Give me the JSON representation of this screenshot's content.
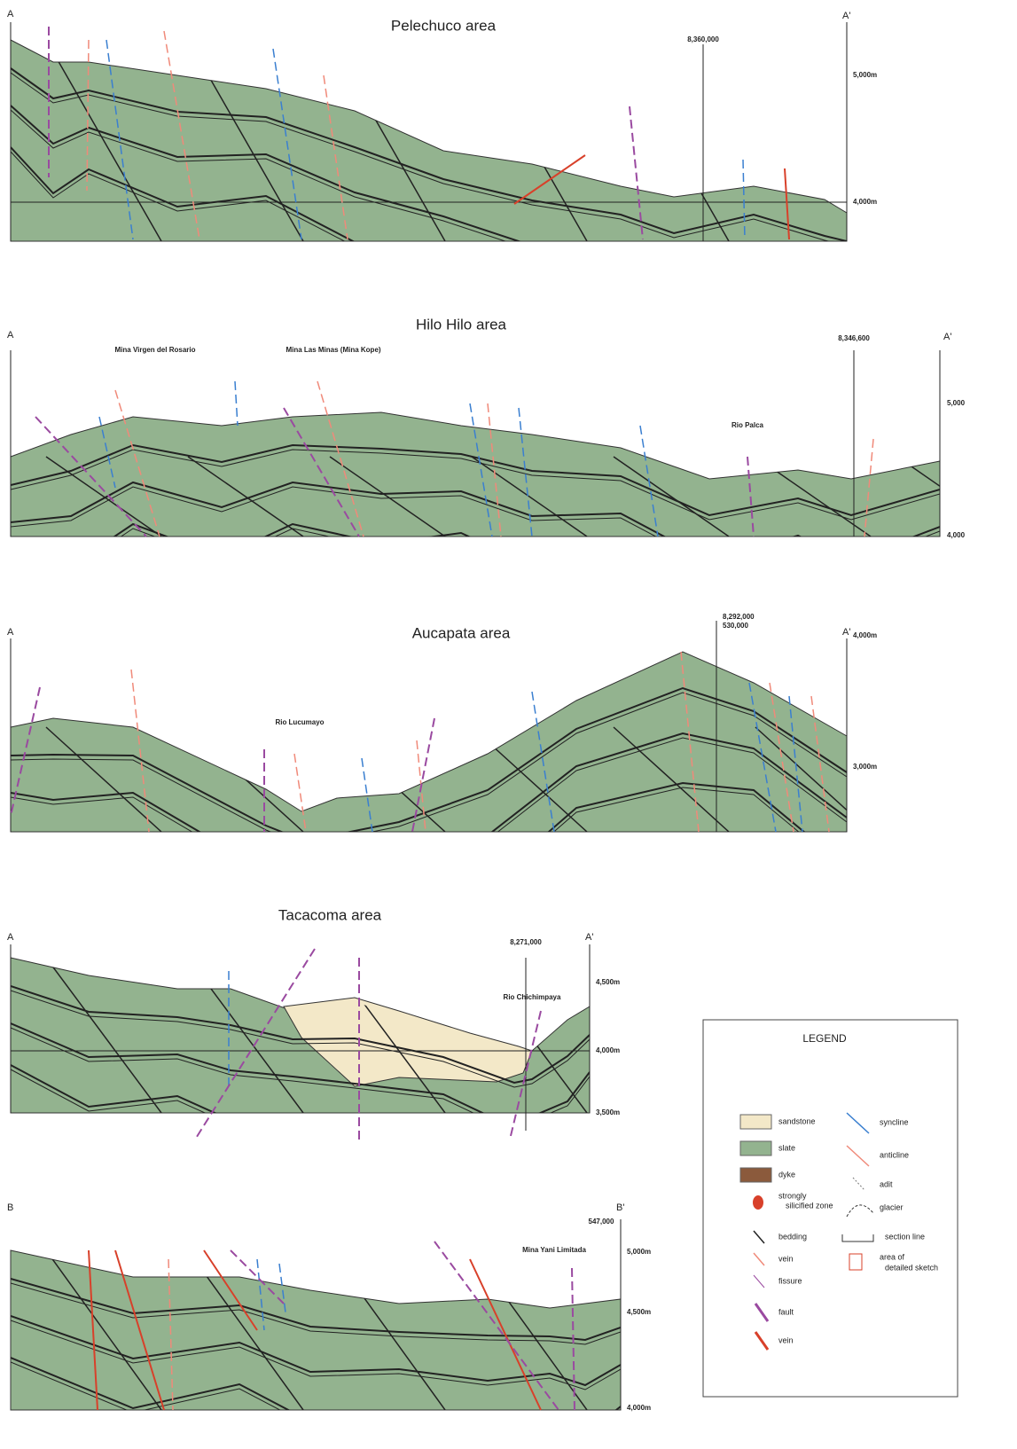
{
  "sections": [
    {
      "title": "Pelechuco area",
      "start": "A",
      "end": "A'",
      "labels": [
        "8,360,000",
        "5,000m",
        "4,000m"
      ]
    },
    {
      "title": "Hilo Hilo area",
      "start": "A",
      "end": "A'",
      "labels": [
        "Mina Virgen del Rosario",
        "Mina Las Minas (Mina Kope)",
        "8,346,600",
        "5,000",
        "Rio Palca",
        "4,000"
      ]
    },
    {
      "title": "Aucapata  area",
      "start": "A",
      "end": "A'",
      "labels": [
        "8,292,000",
        "530,000",
        "4,000m",
        "Rio Lucumayo",
        "3,000m"
      ]
    },
    {
      "title": "Tacacoma area",
      "start": "A",
      "end": "A'",
      "labels": [
        "8,271,000",
        "4,500m",
        "Rio Chichimpaya",
        "4,000m",
        "3,500m"
      ]
    },
    {
      "start": "B",
      "end": "B'",
      "labels": [
        "547,000",
        "Mina Yani Limitada",
        "5,000m",
        "4,500m",
        "4,000m"
      ]
    }
  ],
  "legend": {
    "title": "LEGEND",
    "items": [
      "sandstone",
      "slate",
      "dyke",
      [
        "strongly",
        "silicified zone"
      ],
      "bedding",
      "vein",
      "fissure",
      "fault",
      "vein",
      "syncline",
      "anticline",
      "adit",
      "glacier",
      "section line",
      [
        "area of",
        "detailed sketch"
      ]
    ]
  }
}
